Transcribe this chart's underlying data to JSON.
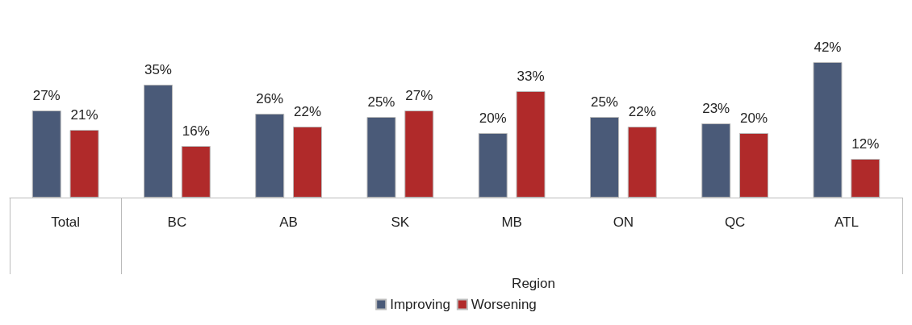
{
  "chart_data": {
    "type": "bar",
    "categories": [
      "Total",
      "BC",
      "AB",
      "SK",
      "MB",
      "ON",
      "QC",
      "ATL"
    ],
    "series": [
      {
        "name": "Improving",
        "color": "#4a5a78",
        "values": [
          27,
          35,
          26,
          25,
          20,
          25,
          23,
          42
        ],
        "value_labels": [
          "27%",
          "35%",
          "26%",
          "25%",
          "20%",
          "25%",
          "23%",
          "42%"
        ]
      },
      {
        "name": "Worsening",
        "color": "#b02a2a",
        "values": [
          21,
          16,
          22,
          27,
          33,
          22,
          20,
          12
        ],
        "value_labels": [
          "21%",
          "16%",
          "22%",
          "27%",
          "33%",
          "22%",
          "20%",
          "12%"
        ]
      }
    ],
    "annotations": [
      "Region"
    ],
    "legend": "bottom",
    "grid": false
  }
}
